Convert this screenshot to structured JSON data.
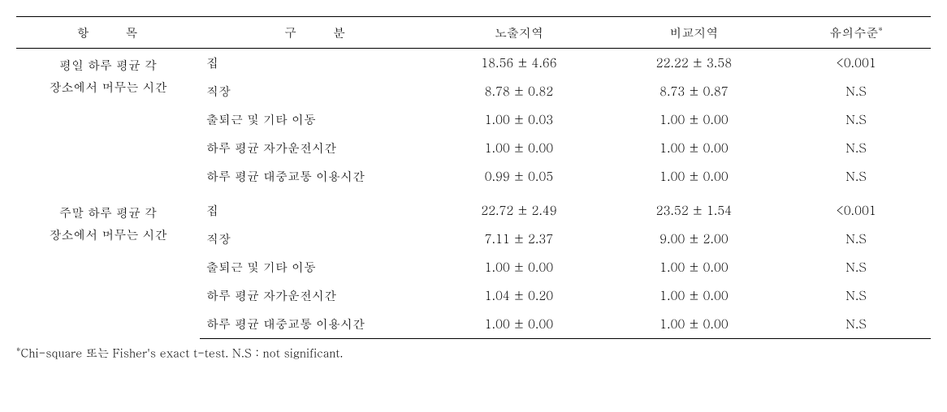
{
  "headers": {
    "col1": "항 목",
    "col2": "구 분",
    "col3": "노출지역",
    "col4": "비교지역",
    "col5": "유의수준",
    "col5_sup": "*"
  },
  "group1": {
    "label_line1": "평일 하루 평균 각",
    "label_line2": "장소에서 머무는 시간",
    "rows": [
      {
        "sub": "집",
        "a": "18.56 ± 4.66",
        "b": "22.22 ± 3.58",
        "sig": "<0.001"
      },
      {
        "sub": "직장",
        "a": "8.78 ± 0.82",
        "b": "8.73 ± 0.87",
        "sig": "N.S"
      },
      {
        "sub": "출퇴근 및 기타 이동",
        "a": "1.00 ± 0.03",
        "b": "1.00 ± 0.00",
        "sig": "N.S"
      },
      {
        "sub": "하루 평균 자가운전시간",
        "a": "1.00 ± 0.00",
        "b": "1.00 ± 0.00",
        "sig": "N.S"
      },
      {
        "sub": "하루 평균 대중교통 이용시간",
        "a": "0.99 ± 0.05",
        "b": "1.00 ± 0.00",
        "sig": "N.S"
      }
    ]
  },
  "group2": {
    "label_line1": "주말 하루 평균 각",
    "label_line2": "장소에서 머무는 시간",
    "rows": [
      {
        "sub": "집",
        "a": "22.72 ± 2.49",
        "b": "23.52 ± 1.54",
        "sig": "<0.001"
      },
      {
        "sub": "직장",
        "a": "7.11 ± 2.37",
        "b": "9.00 ± 2.00",
        "sig": "N.S"
      },
      {
        "sub": "출퇴근 및 기타 이동",
        "a": "1.00 ± 0.00",
        "b": "1.00 ± 0.00",
        "sig": "N.S"
      },
      {
        "sub": "하루 평균 자가운전시간",
        "a": "1.04 ± 0.20",
        "b": "1.00 ± 0.00",
        "sig": "N.S"
      },
      {
        "sub": "하루 평균 대중교통 이용시간",
        "a": "1.00 ± 0.00",
        "b": "1.00 ± 0.00",
        "sig": "N.S"
      }
    ]
  },
  "footnote": {
    "sup": "*",
    "text": "Chi-square 또는 Fisher's exact t-test. N.S : not significant."
  }
}
